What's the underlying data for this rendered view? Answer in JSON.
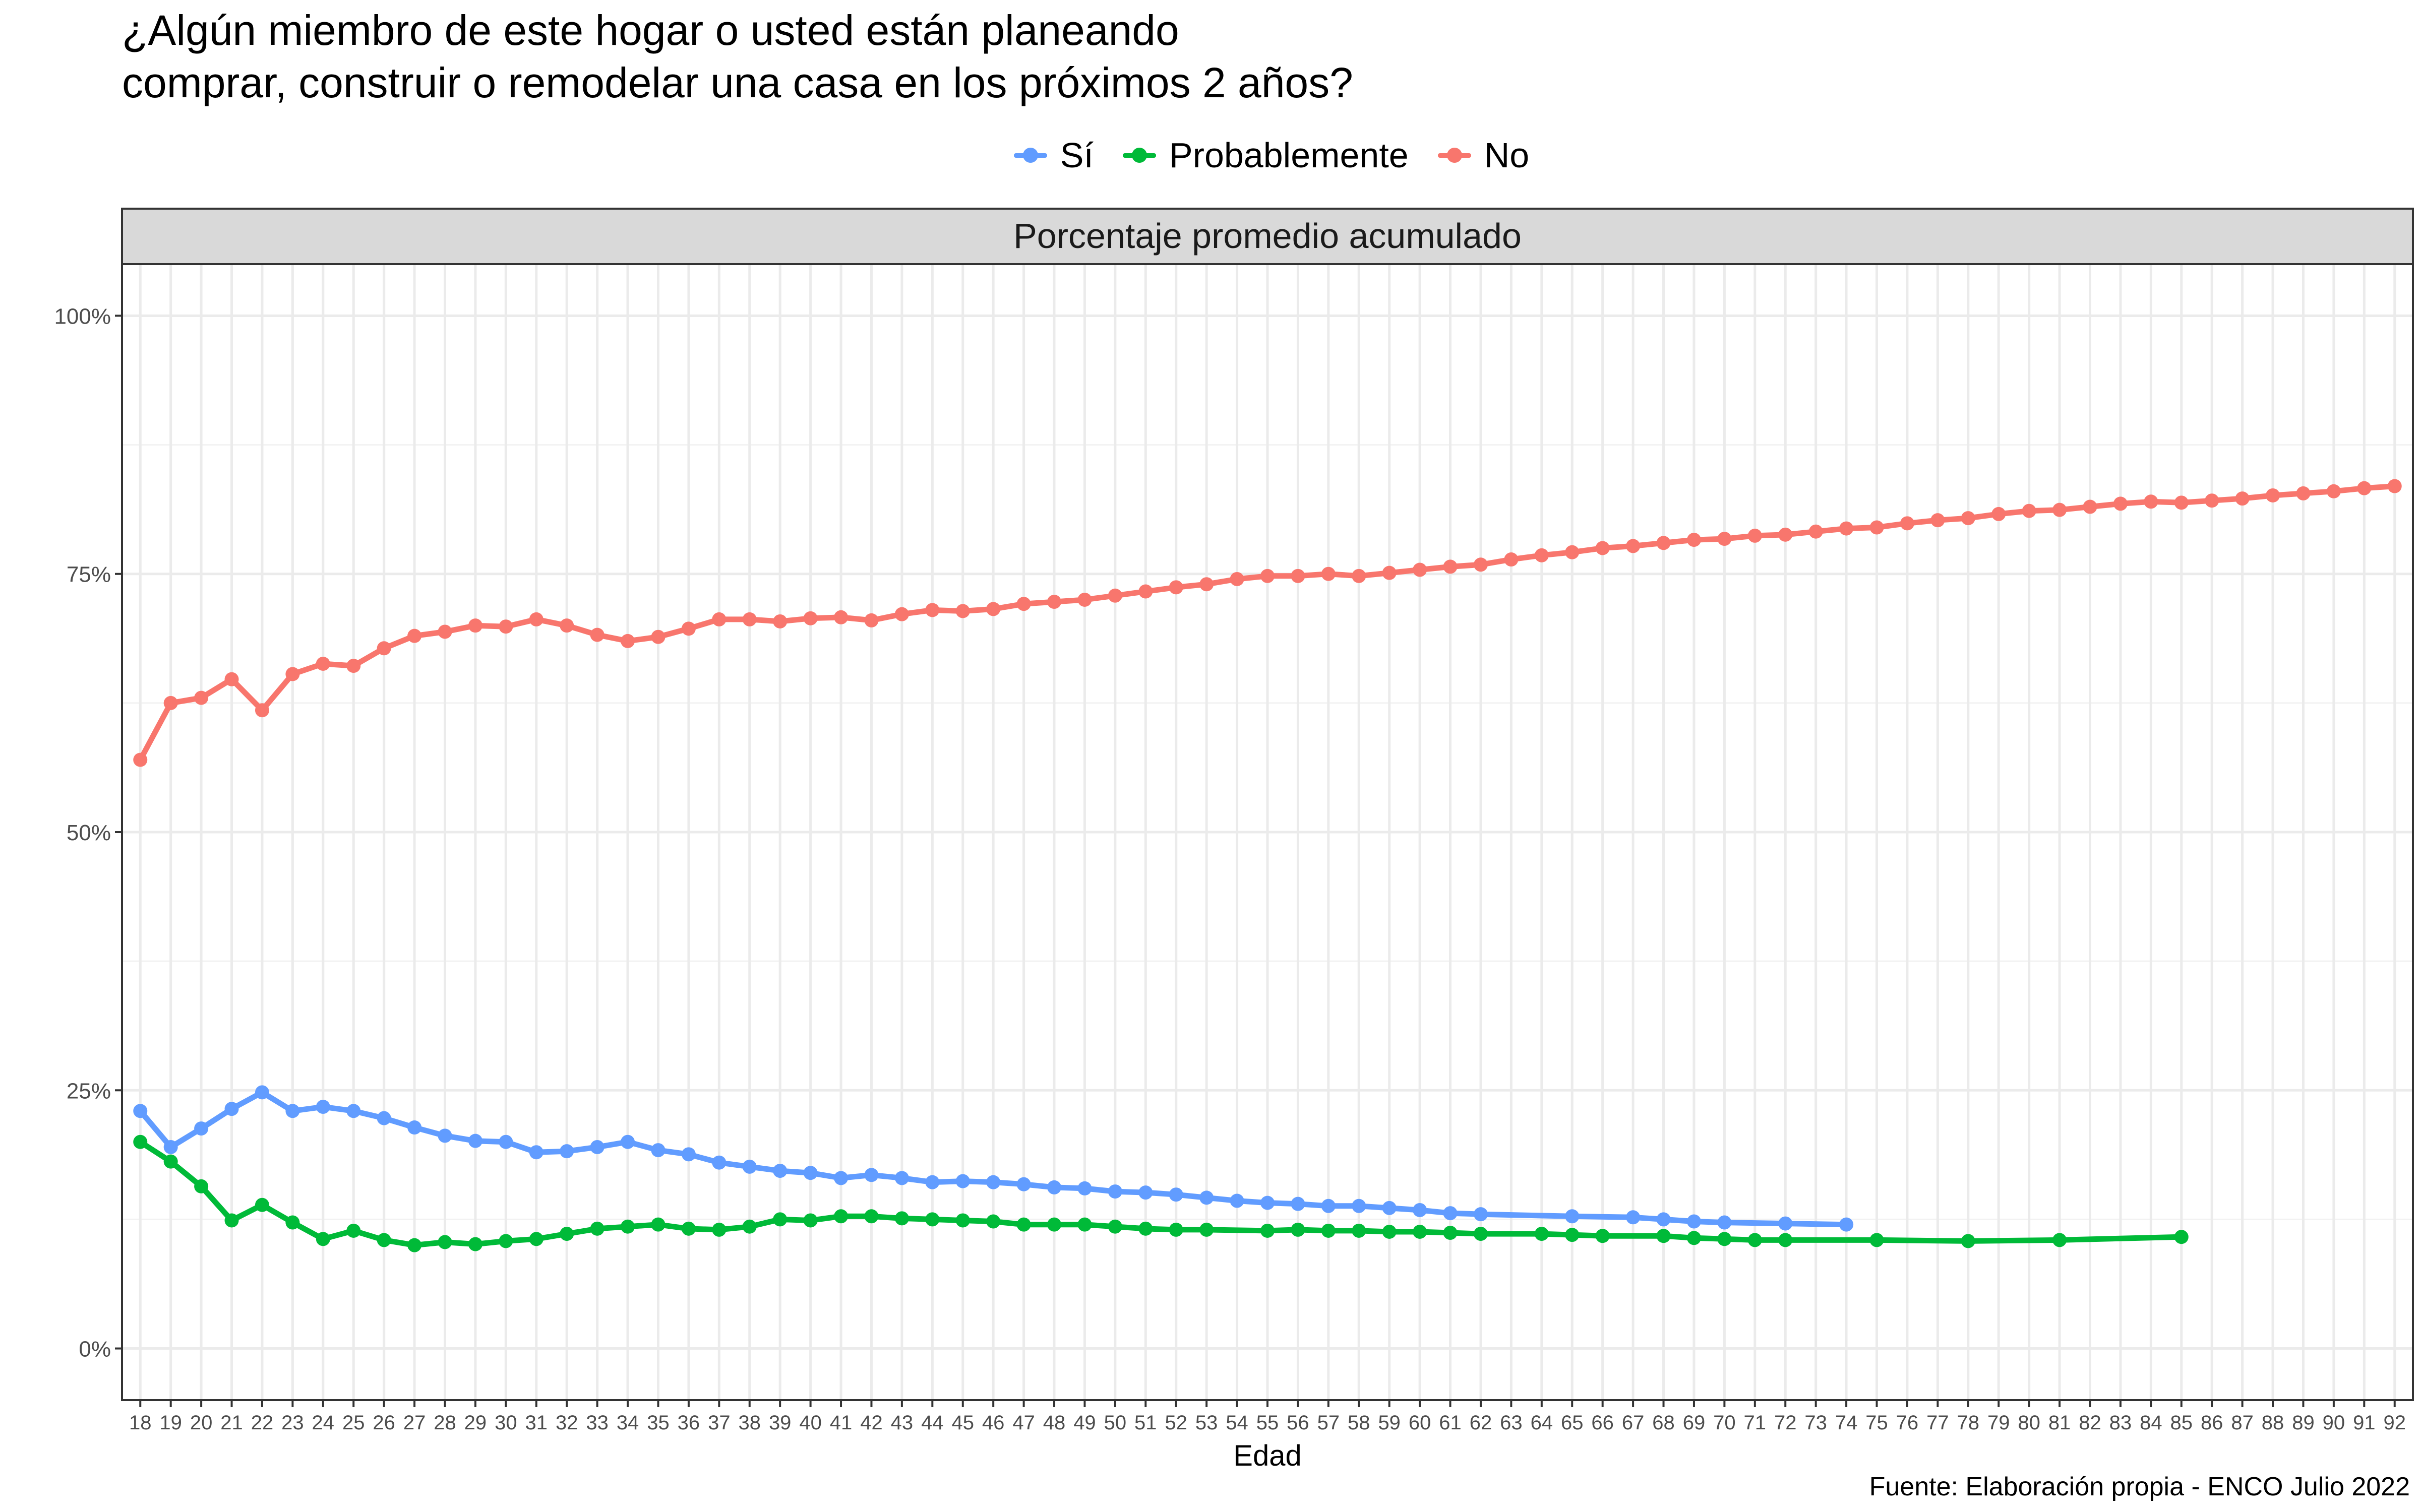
{
  "title_lines": [
    "¿Algún miembro de este hogar o usted están planeando",
    "comprar, construir o remodelar una casa en los próximos 2 años?"
  ],
  "caption": "Fuente: Elaboración propia - ENCO Julio 2022",
  "chart_data": {
    "type": "line",
    "facet_label": "Porcentaje promedio acumulado",
    "xlabel": "Edad",
    "ylabel": "",
    "x_range": [
      18,
      92
    ],
    "ylim": [
      -0.05,
      1.05
    ],
    "y_ticks": [
      0,
      0.25,
      0.5,
      0.75,
      1.0
    ],
    "y_tick_labels": [
      "0%",
      "25%",
      "50%",
      "75%",
      "100%"
    ],
    "x_ticks": [
      18,
      19,
      20,
      21,
      22,
      23,
      24,
      25,
      26,
      27,
      28,
      29,
      30,
      31,
      32,
      33,
      34,
      35,
      36,
      37,
      38,
      39,
      40,
      41,
      42,
      43,
      44,
      45,
      46,
      47,
      48,
      49,
      50,
      51,
      52,
      53,
      54,
      55,
      56,
      57,
      58,
      59,
      60,
      61,
      62,
      63,
      64,
      65,
      66,
      67,
      68,
      69,
      70,
      71,
      72,
      73,
      74,
      75,
      76,
      77,
      78,
      79,
      80,
      81,
      82,
      83,
      84,
      85,
      86,
      87,
      88,
      89,
      90,
      91,
      92
    ],
    "grid": true,
    "legend_position": "top",
    "series": [
      {
        "name": "Sí",
        "color": "#619CFF",
        "x": [
          18,
          19,
          20,
          21,
          22,
          23,
          24,
          25,
          26,
          27,
          28,
          29,
          30,
          31,
          32,
          33,
          34,
          35,
          36,
          37,
          38,
          39,
          40,
          41,
          42,
          43,
          44,
          45,
          46,
          47,
          48,
          49,
          50,
          51,
          52,
          53,
          54,
          55,
          56,
          57,
          58,
          59,
          60,
          61,
          62,
          65,
          67,
          68,
          69,
          70,
          72,
          74
        ],
        "y": [
          0.23,
          0.195,
          0.213,
          0.232,
          0.248,
          0.23,
          0.234,
          0.23,
          0.223,
          0.214,
          0.206,
          0.201,
          0.2,
          0.19,
          0.191,
          0.195,
          0.2,
          0.192,
          0.188,
          0.18,
          0.176,
          0.172,
          0.17,
          0.165,
          0.168,
          0.165,
          0.161,
          0.162,
          0.161,
          0.159,
          0.156,
          0.155,
          0.152,
          0.151,
          0.149,
          0.146,
          0.143,
          0.141,
          0.14,
          0.138,
          0.138,
          0.136,
          0.134,
          0.131,
          0.13,
          0.128,
          0.127,
          0.125,
          0.123,
          0.122,
          0.121,
          0.12
        ]
      },
      {
        "name": "Probablemente",
        "color": "#00BA38",
        "x": [
          18,
          19,
          20,
          21,
          22,
          23,
          24,
          25,
          26,
          27,
          28,
          29,
          30,
          31,
          32,
          33,
          34,
          35,
          36,
          37,
          38,
          39,
          40,
          41,
          42,
          43,
          44,
          45,
          46,
          47,
          48,
          49,
          50,
          51,
          52,
          53,
          55,
          56,
          57,
          58,
          59,
          60,
          61,
          62,
          64,
          65,
          66,
          68,
          69,
          70,
          71,
          72,
          75,
          78,
          81,
          85
        ],
        "y": [
          0.2,
          0.181,
          0.157,
          0.124,
          0.139,
          0.122,
          0.106,
          0.114,
          0.105,
          0.1,
          0.103,
          0.101,
          0.104,
          0.106,
          0.111,
          0.116,
          0.118,
          0.12,
          0.116,
          0.115,
          0.118,
          0.125,
          0.124,
          0.128,
          0.128,
          0.126,
          0.125,
          0.124,
          0.123,
          0.12,
          0.12,
          0.12,
          0.118,
          0.116,
          0.115,
          0.115,
          0.114,
          0.115,
          0.114,
          0.114,
          0.113,
          0.113,
          0.112,
          0.111,
          0.111,
          0.11,
          0.109,
          0.109,
          0.107,
          0.106,
          0.105,
          0.105,
          0.105,
          0.104,
          0.105,
          0.108
        ]
      },
      {
        "name": "No",
        "color": "#F8766D",
        "x": [
          18,
          19,
          20,
          21,
          22,
          23,
          24,
          25,
          26,
          27,
          28,
          29,
          30,
          31,
          32,
          33,
          34,
          35,
          36,
          37,
          38,
          39,
          40,
          41,
          42,
          43,
          44,
          45,
          46,
          47,
          48,
          49,
          50,
          51,
          52,
          53,
          54,
          55,
          56,
          57,
          58,
          59,
          60,
          61,
          62,
          63,
          64,
          65,
          66,
          67,
          68,
          69,
          70,
          71,
          72,
          73,
          74,
          75,
          76,
          77,
          78,
          79,
          80,
          81,
          82,
          83,
          84,
          85,
          86,
          87,
          88,
          89,
          90,
          91,
          92
        ],
        "y": [
          0.57,
          0.625,
          0.63,
          0.648,
          0.618,
          0.653,
          0.663,
          0.661,
          0.678,
          0.69,
          0.694,
          0.7,
          0.699,
          0.706,
          0.7,
          0.691,
          0.685,
          0.689,
          0.697,
          0.706,
          0.706,
          0.704,
          0.707,
          0.708,
          0.705,
          0.711,
          0.715,
          0.714,
          0.716,
          0.721,
          0.723,
          0.725,
          0.729,
          0.733,
          0.737,
          0.74,
          0.745,
          0.748,
          0.748,
          0.75,
          0.748,
          0.751,
          0.754,
          0.757,
          0.759,
          0.764,
          0.768,
          0.771,
          0.775,
          0.777,
          0.78,
          0.783,
          0.784,
          0.787,
          0.788,
          0.791,
          0.794,
          0.795,
          0.799,
          0.802,
          0.804,
          0.808,
          0.811,
          0.812,
          0.815,
          0.818,
          0.82,
          0.819,
          0.821,
          0.823,
          0.826,
          0.828,
          0.83,
          0.833,
          0.835
        ]
      }
    ]
  }
}
